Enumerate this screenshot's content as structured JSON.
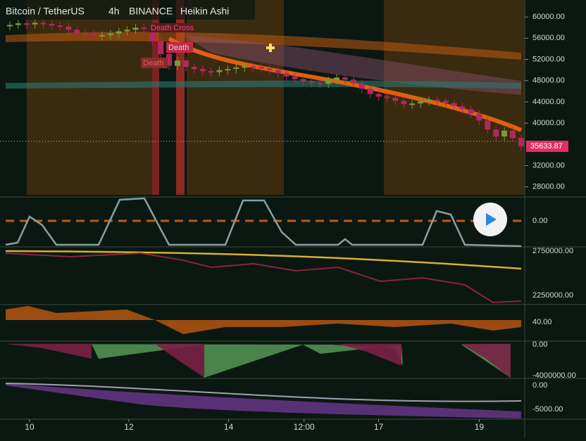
{
  "header": {
    "title": "Bitcoin / TetherUS",
    "interval": "4h",
    "exchange": "BINANCE",
    "style": "Heikin Ashi"
  },
  "chart_data": {
    "type": "candlestick",
    "annotations": [
      "Death Cross",
      "Death",
      "Death"
    ],
    "close": [
      58500,
      58800,
      58600,
      58900,
      58700,
      58400,
      58200,
      57600,
      57000,
      56800,
      56500,
      56600,
      56900,
      57300,
      57600,
      58000,
      57800,
      55500,
      53000,
      50800,
      51800,
      50600,
      50200,
      49800,
      49600,
      50000,
      50200,
      50500,
      50700,
      50600,
      50300,
      50000,
      49400,
      48800,
      48300,
      47900,
      47600,
      47400,
      48100,
      48600,
      48200,
      47500,
      46500,
      45500,
      45000,
      44800,
      44200,
      43600,
      43700,
      44100,
      44400,
      44200,
      43800,
      43200,
      42600,
      41800,
      40500,
      38800,
      37500,
      38600,
      37200,
      35633.87
    ],
    "last_price_label": "35633.87",
    "up_color": "#7a9a3a",
    "down_color": "#b3285c",
    "ylim": [
      26500,
      63200
    ],
    "yticks": [
      {
        "value": 60000,
        "label": "60000.00"
      },
      {
        "value": 56000,
        "label": "56000.00"
      },
      {
        "value": 52000,
        "label": "52000.00"
      },
      {
        "value": 48000,
        "label": "48000.00"
      },
      {
        "value": 44000,
        "label": "44000.00"
      },
      {
        "value": 40000,
        "label": "40000.00"
      },
      {
        "value": 32000,
        "label": "32000.00"
      },
      {
        "value": 28000,
        "label": "28000.00"
      }
    ],
    "xticks": [
      {
        "value": 2.35,
        "label": "10"
      },
      {
        "value": 14.2,
        "label": "12"
      },
      {
        "value": 26.1,
        "label": "14"
      },
      {
        "value": 35.1,
        "label": "12:00"
      },
      {
        "value": 44.0,
        "label": "17"
      },
      {
        "value": 56.0,
        "label": "19"
      }
    ]
  },
  "panels": [
    {
      "ticks": [
        "0.00"
      ]
    },
    {
      "ticks": [
        "2750000.00",
        "2250000.00"
      ]
    },
    {
      "ticks": [
        "40.00"
      ]
    },
    {
      "ticks": [
        "0.00",
        "-4000000.00"
      ]
    },
    {
      "ticks": [
        "0.00",
        "-5000.00"
      ]
    }
  ]
}
